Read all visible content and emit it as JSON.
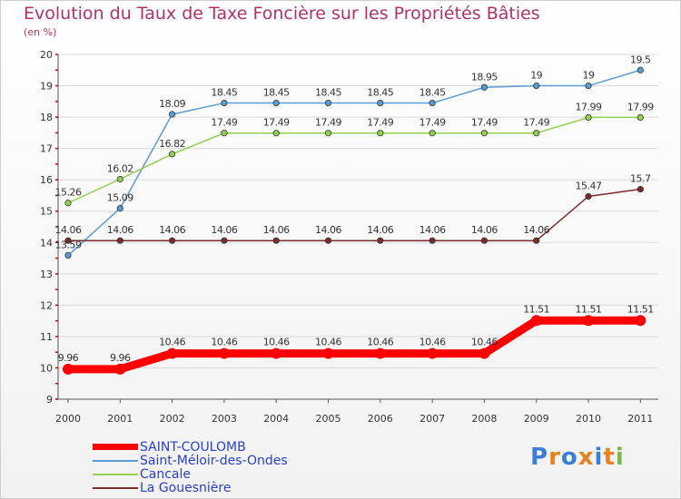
{
  "page": {
    "title": "Evolution du Taux de Taxe Foncière sur les Propriétés Bâties",
    "unit_label": "(en %)",
    "logo": "Proxiti"
  },
  "chart_data": {
    "type": "line",
    "title": "Evolution du Taux de Taxe Foncière sur les Propriétés Bâties",
    "ylabel": "(en %)",
    "xlabel": "",
    "ylim": [
      9,
      20
    ],
    "yticks": [
      9,
      10,
      11,
      12,
      13,
      14,
      15,
      16,
      17,
      18,
      19,
      20
    ],
    "x": [
      "2000",
      "2001",
      "2002",
      "2003",
      "2004",
      "2005",
      "2006",
      "2007",
      "2008",
      "2009",
      "2010",
      "2011"
    ],
    "series": [
      {
        "name": "SAINT-COULOMB",
        "color": "#ff0000",
        "values": [
          9.96,
          9.96,
          10.46,
          10.46,
          10.46,
          10.46,
          10.46,
          10.46,
          10.46,
          11.51,
          11.51,
          11.51
        ],
        "labels": [
          "9.96",
          "9.96",
          "10.46",
          "10.46",
          "10.46",
          "10.46",
          "10.46",
          "10.46",
          "10.46",
          "11.51",
          "11.51",
          "11.51"
        ]
      },
      {
        "name": "Saint-Méloir-des-Ondes",
        "color": "#5b9bd5",
        "values": [
          13.59,
          15.09,
          18.09,
          18.45,
          18.45,
          18.45,
          18.45,
          18.45,
          18.95,
          19,
          19,
          19.5
        ],
        "labels": [
          "13.59",
          "15.09",
          "18.09",
          "18.45",
          "18.45",
          "18.45",
          "18.45",
          "18.45",
          "18.95",
          "19",
          "19",
          "19.5"
        ]
      },
      {
        "name": "Cancale",
        "color": "#92d050",
        "values": [
          15.26,
          16.02,
          16.82,
          17.49,
          17.49,
          17.49,
          17.49,
          17.49,
          17.49,
          17.49,
          17.99,
          17.99
        ],
        "labels": [
          "15.26",
          "16.02",
          "16.82",
          "17.49",
          "17.49",
          "17.49",
          "17.49",
          "17.49",
          "17.49",
          "17.49",
          "17.99",
          "17.99"
        ]
      },
      {
        "name": "La Gouesnière",
        "color": "#7b2c2c",
        "values": [
          14.06,
          14.06,
          14.06,
          14.06,
          14.06,
          14.06,
          14.06,
          14.06,
          14.06,
          14.06,
          15.47,
          15.7
        ],
        "labels": [
          "14.06",
          "14.06",
          "14.06",
          "14.06",
          "14.06",
          "14.06",
          "14.06",
          "14.06",
          "14.06",
          "14.06",
          "15.47",
          "15.7"
        ]
      }
    ]
  }
}
